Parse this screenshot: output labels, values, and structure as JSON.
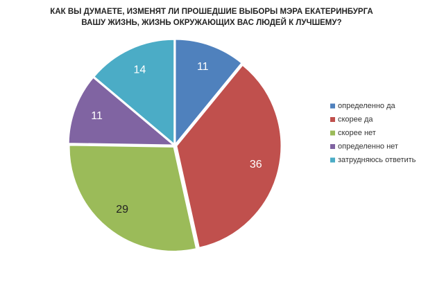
{
  "chart_data": {
    "type": "pie",
    "title": [
      "КАК ВЫ ДУМАЕТЕ, ИЗМЕНЯТ ЛИ ПРОШЕДШИЕ ВЫБОРЫ МЭРА ЕКАТЕРИНБУРГА",
      "ВАШУ ЖИЗНЬ, ЖИЗНЬ ОКРУЖАЮЩИХ ВАС ЛЮДЕЙ К ЛУЧШЕМУ?"
    ],
    "categories": [
      "определенно да",
      "скорее да",
      "скорее нет",
      "определенно нет",
      "затрудняюсь ответить"
    ],
    "values": [
      11,
      36,
      29,
      11,
      14
    ],
    "colors": [
      "#4f81bd",
      "#c0504d",
      "#9bbb59",
      "#8064a2",
      "#4bacc6"
    ],
    "legend": "right"
  }
}
